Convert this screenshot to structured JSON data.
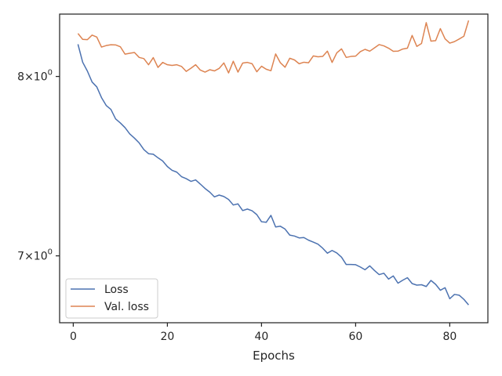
{
  "chart_data": {
    "type": "line",
    "title": "",
    "xlabel": "Epochs",
    "ylabel": "",
    "xlim": [
      -2.9,
      88.1
    ],
    "ylim": [
      6.66,
      8.38
    ],
    "yscale": "log",
    "grid": false,
    "legend_position": "lower-left",
    "x_ticks": [
      {
        "value": 0,
        "label": "0"
      },
      {
        "value": 20,
        "label": "20"
      },
      {
        "value": 40,
        "label": "40"
      },
      {
        "value": 60,
        "label": "60"
      },
      {
        "value": 80,
        "label": "80"
      }
    ],
    "y_ticks": [
      {
        "value": 7,
        "label": "7×10",
        "exp": "0"
      },
      {
        "value": 8,
        "label": "8×10",
        "exp": "0"
      }
    ],
    "series": [
      {
        "name": "Loss",
        "color": "#4c72b0",
        "x": [
          1,
          2,
          3,
          4,
          5,
          6,
          7,
          8,
          9,
          10,
          11,
          12,
          13,
          14,
          15,
          16,
          17,
          18,
          19,
          20,
          21,
          22,
          23,
          24,
          25,
          26,
          27,
          28,
          29,
          30,
          31,
          32,
          33,
          34,
          35,
          36,
          37,
          38,
          39,
          40,
          41,
          42,
          43,
          44,
          45,
          46,
          47,
          48,
          49,
          50,
          51,
          52,
          53,
          54,
          55,
          56,
          57,
          58,
          59,
          60,
          61,
          62,
          63,
          64,
          65,
          66,
          67,
          68,
          69,
          70,
          71,
          72,
          73,
          74,
          75,
          76,
          77,
          78,
          79,
          80,
          81,
          82,
          83,
          84
        ],
        "values": [
          8.194,
          8.085,
          8.032,
          7.967,
          7.938,
          7.875,
          7.829,
          7.806,
          7.751,
          7.728,
          7.701,
          7.665,
          7.641,
          7.614,
          7.576,
          7.553,
          7.55,
          7.53,
          7.512,
          7.481,
          7.46,
          7.45,
          7.425,
          7.414,
          7.399,
          7.407,
          7.384,
          7.36,
          7.34,
          7.314,
          7.324,
          7.316,
          7.3,
          7.27,
          7.276,
          7.24,
          7.248,
          7.239,
          7.218,
          7.18,
          7.177,
          7.214,
          7.152,
          7.156,
          7.141,
          7.109,
          7.104,
          7.094,
          7.096,
          7.082,
          7.072,
          7.061,
          7.04,
          7.014,
          7.028,
          7.015,
          6.993,
          6.955,
          6.955,
          6.954,
          6.942,
          6.928,
          6.948,
          6.924,
          6.903,
          6.91,
          6.88,
          6.896,
          6.859,
          6.874,
          6.887,
          6.857,
          6.849,
          6.851,
          6.842,
          6.873,
          6.853,
          6.823,
          6.836,
          6.78,
          6.802,
          6.798,
          6.777,
          6.749
        ]
      },
      {
        "name": "Val. loss",
        "color": "#dd8452",
        "x": [
          1,
          2,
          3,
          4,
          5,
          6,
          7,
          8,
          9,
          10,
          11,
          12,
          13,
          14,
          15,
          16,
          17,
          18,
          19,
          20,
          21,
          22,
          23,
          24,
          25,
          26,
          27,
          28,
          29,
          30,
          31,
          32,
          33,
          34,
          35,
          36,
          37,
          38,
          39,
          40,
          41,
          42,
          43,
          44,
          45,
          46,
          47,
          48,
          49,
          50,
          51,
          52,
          53,
          54,
          55,
          56,
          57,
          58,
          59,
          60,
          61,
          62,
          63,
          64,
          65,
          66,
          67,
          68,
          69,
          70,
          71,
          72,
          73,
          74,
          75,
          76,
          77,
          78,
          79,
          80,
          81,
          82,
          83,
          84
        ],
        "values": [
          8.26,
          8.224,
          8.222,
          8.25,
          8.238,
          8.177,
          8.186,
          8.191,
          8.19,
          8.179,
          8.134,
          8.139,
          8.144,
          8.114,
          8.107,
          8.07,
          8.113,
          8.054,
          8.084,
          8.07,
          8.066,
          8.07,
          8.06,
          8.03,
          8.049,
          8.07,
          8.038,
          8.026,
          8.04,
          8.033,
          8.048,
          8.081,
          8.021,
          8.091,
          8.026,
          8.08,
          8.084,
          8.076,
          8.028,
          8.061,
          8.043,
          8.034,
          8.135,
          8.082,
          8.055,
          8.109,
          8.099,
          8.076,
          8.085,
          8.082,
          8.123,
          8.118,
          8.12,
          8.152,
          8.084,
          8.142,
          8.166,
          8.114,
          8.12,
          8.122,
          8.149,
          8.163,
          8.152,
          8.172,
          8.192,
          8.184,
          8.17,
          8.151,
          8.152,
          8.165,
          8.17,
          8.248,
          8.181,
          8.199,
          8.327,
          8.213,
          8.216,
          8.29,
          8.227,
          8.201,
          8.21,
          8.226,
          8.243,
          8.34
        ]
      }
    ]
  }
}
